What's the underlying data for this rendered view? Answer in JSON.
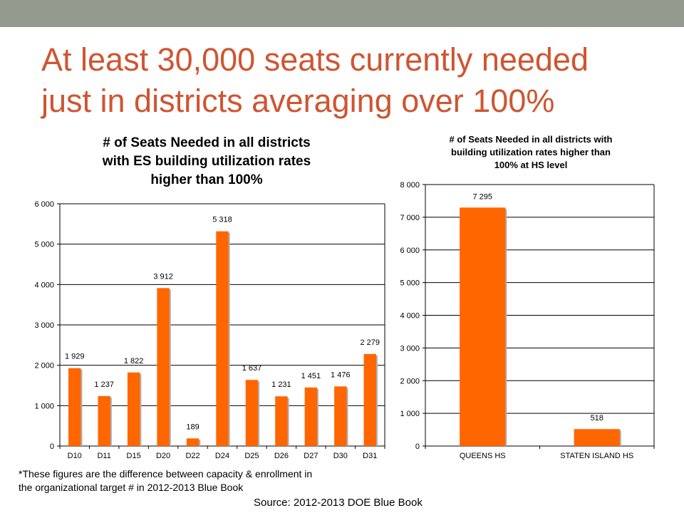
{
  "slide": {
    "title_line1": "At least 30,000 seats currently needed",
    "title_line2": "just in districts averaging over 100%",
    "footnote_line1": "*These figures are the difference between capacity & enrollment in",
    "footnote_line2": "the organizational target #  in 2012-2013 Blue Book",
    "source": "Source: 2012-2013 DOE Blue Book"
  },
  "colors": {
    "bar": "#ff6600",
    "topbar": "#949b8e",
    "title": "#cf5531",
    "gridline": "#000000"
  },
  "chart_data": [
    {
      "type": "bar",
      "title_lines": [
        "# of Seats Needed in all districts",
        "with ES building utilization rates",
        "higher than 100%"
      ],
      "categories": [
        "D10",
        "D11",
        "D15",
        "D20",
        "D22",
        "D24",
        "D25",
        "D26",
        "D27",
        "D30",
        "D31"
      ],
      "values": [
        1929,
        1237,
        1822,
        3912,
        189,
        5318,
        1637,
        1231,
        1451,
        1476,
        2279
      ],
      "data_labels": [
        "1 929",
        "1 237",
        "1 822",
        "3 912",
        "189",
        "5 318",
        "1 637",
        "1 231",
        "1 451",
        "1 476",
        "2 279"
      ],
      "ylim": [
        0,
        6000
      ],
      "yticks": [
        0,
        1000,
        2000,
        3000,
        4000,
        5000,
        6000
      ],
      "ytick_labels": [
        "0",
        "1 000",
        "2 000",
        "3 000",
        "4 000",
        "5 000",
        "6 000"
      ],
      "grid": true,
      "legend": "none"
    },
    {
      "type": "bar",
      "title_lines": [
        "# of Seats Needed in all districts with",
        "building utilization rates higher than",
        "100% at HS level"
      ],
      "categories": [
        "QUEENS HS",
        "STATEN ISLAND HS"
      ],
      "values": [
        7295,
        518
      ],
      "data_labels": [
        "7 295",
        "518"
      ],
      "ylim": [
        0,
        8000
      ],
      "yticks": [
        0,
        1000,
        2000,
        3000,
        4000,
        5000,
        6000,
        7000,
        8000
      ],
      "ytick_labels": [
        "0",
        "1 000",
        "2 000",
        "3 000",
        "4 000",
        "5 000",
        "6 000",
        "7 000",
        "8 000"
      ],
      "grid": true,
      "legend": "none"
    }
  ]
}
